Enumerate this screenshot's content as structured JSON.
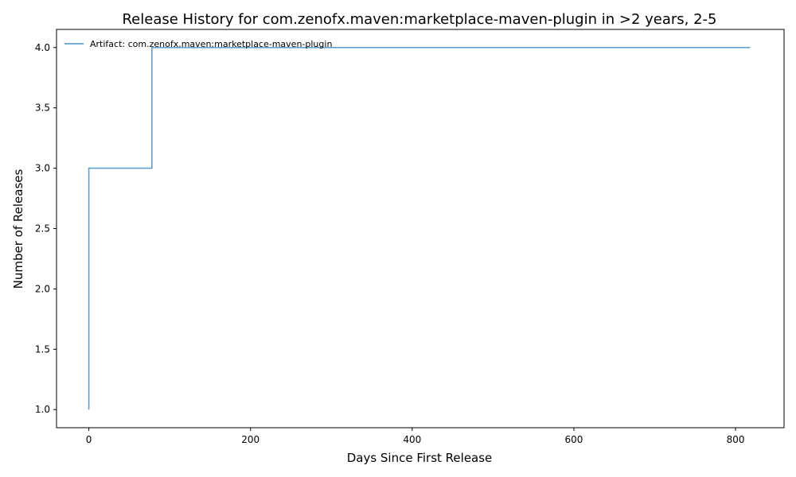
{
  "chart_data": {
    "type": "line",
    "step": true,
    "title": "Release History for com.zenofx.maven:marketplace-maven-plugin in >2 years, 2-5",
    "xlabel": "Days Since First Release",
    "ylabel": "Number of Releases",
    "xlim": [
      -40,
      860
    ],
    "ylim": [
      0.85,
      4.15
    ],
    "xticks": [
      0,
      200,
      400,
      600,
      800
    ],
    "yticks": [
      1.0,
      1.5,
      2.0,
      2.5,
      3.0,
      3.5,
      4.0
    ],
    "xtick_labels": [
      "0",
      "200",
      "400",
      "600",
      "800"
    ],
    "ytick_labels": [
      "1.0",
      "1.5",
      "2.0",
      "2.5",
      "3.0",
      "3.5",
      "4.0"
    ],
    "grid": false,
    "legend_position": "top-left",
    "series": [
      {
        "name": "Artifact: com.zenofx.maven:marketplace-maven-plugin",
        "color": "#5fa2ce",
        "x": [
          0,
          0,
          78,
          818
        ],
        "y": [
          1,
          3,
          4,
          4
        ]
      }
    ]
  }
}
